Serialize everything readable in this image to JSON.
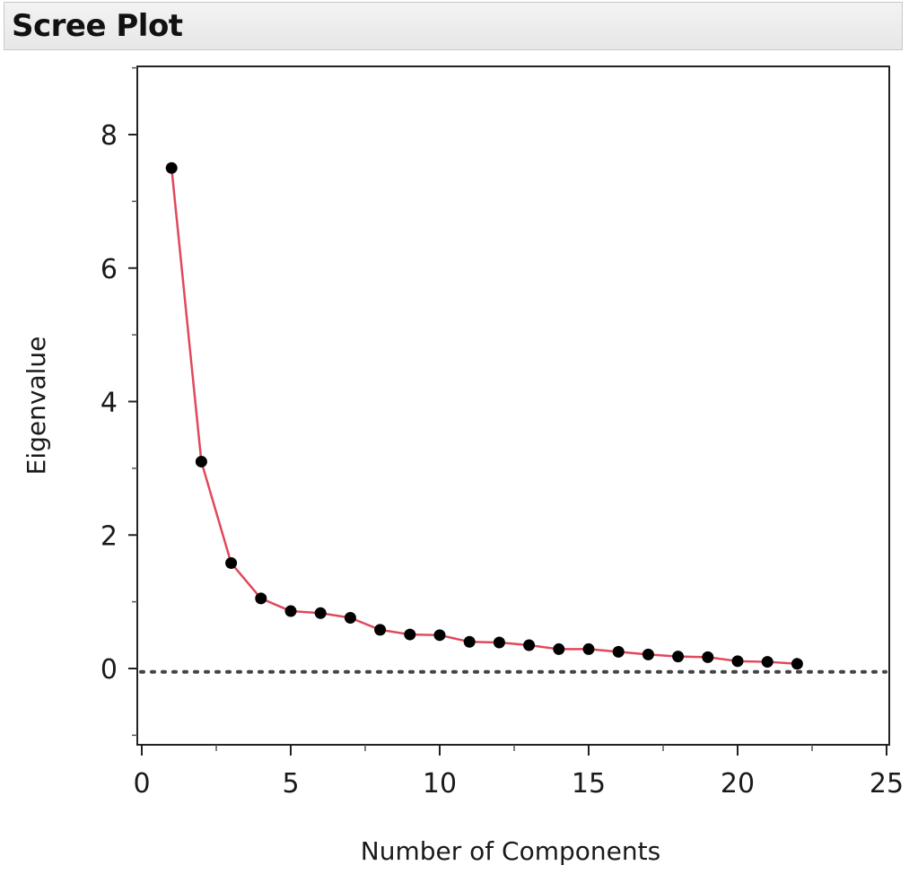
{
  "panel": {
    "title": "Scree Plot"
  },
  "chart_data": {
    "type": "line",
    "title": "",
    "xlabel": "Number of Components",
    "ylabel": "Eigenvalue",
    "xlim": [
      0,
      25
    ],
    "ylim": [
      -1.1,
      9.0
    ],
    "x_ticks": [
      0,
      5,
      10,
      15,
      20,
      25
    ],
    "y_ticks": [
      0,
      2,
      4,
      6,
      8
    ],
    "grid": false,
    "legend": "none",
    "reference_line": {
      "y": -0.05,
      "style": "dotted",
      "color": "#444444"
    },
    "series": [
      {
        "color": "#e0485c",
        "marker_color": "#000000",
        "x": [
          1,
          2,
          3,
          4,
          5,
          6,
          7,
          8,
          9,
          10,
          11,
          12,
          13,
          14,
          15,
          16,
          17,
          18,
          19,
          20,
          21,
          22
        ],
        "y": [
          7.5,
          3.1,
          1.58,
          1.05,
          0.86,
          0.83,
          0.76,
          0.58,
          0.51,
          0.5,
          0.4,
          0.39,
          0.35,
          0.29,
          0.29,
          0.25,
          0.21,
          0.18,
          0.17,
          0.11,
          0.1,
          0.07
        ]
      }
    ]
  }
}
